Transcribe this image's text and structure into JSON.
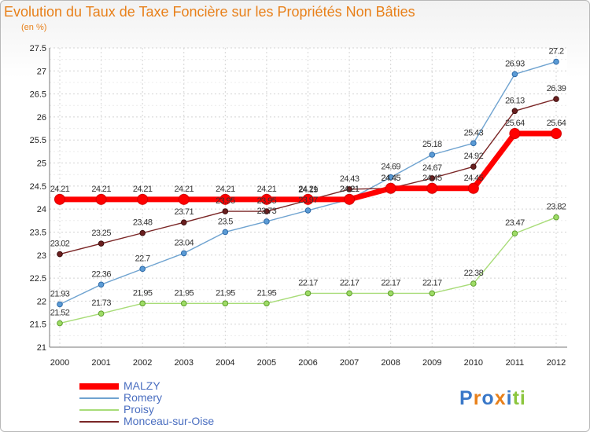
{
  "chart_data": {
    "type": "line",
    "title": "Evolution du Taux de Taxe Foncière sur les Propriétés Non Bâties",
    "unit_label": "(en %)",
    "xlabel": "",
    "ylabel": "",
    "x": [
      "2000",
      "2001",
      "2002",
      "2003",
      "2004",
      "2005",
      "2006",
      "2007",
      "2008",
      "2009",
      "2010",
      "2011",
      "2012"
    ],
    "ylim": [
      21,
      27.5
    ],
    "yticks": [
      "21",
      "21.5",
      "22",
      "22.5",
      "23",
      "23.5",
      "24",
      "24.5",
      "25",
      "25.5",
      "26",
      "26.5",
      "27",
      "27.5"
    ],
    "grid": true,
    "legend_position": "bottom-left",
    "series": [
      {
        "name": "MALZY",
        "color": "#ff0000",
        "values": [
          24.21,
          24.21,
          24.21,
          24.21,
          24.21,
          24.21,
          24.21,
          24.21,
          24.45,
          24.45,
          24.45,
          25.64,
          25.64
        ],
        "labels": [
          "24.21",
          "24.21",
          "24.21",
          "24.21",
          "24.21",
          "24.21",
          "24.21",
          "24.21",
          "24.45",
          "24.45",
          "24.45",
          "25.64",
          "25.64"
        ]
      },
      {
        "name": "Romery",
        "color": "#6fa3d0",
        "values": [
          21.93,
          22.36,
          22.7,
          23.04,
          23.5,
          23.73,
          23.97,
          24.21,
          24.69,
          25.18,
          25.43,
          26.93,
          27.2
        ],
        "labels": [
          "21.93",
          "22.36",
          "22.7",
          "23.04",
          "23.5",
          "23.73",
          "23.97",
          "24.21",
          "24.69",
          "25.18",
          "25.43",
          "26.93",
          "27.2"
        ]
      },
      {
        "name": "Proisy",
        "color": "#a8dc78",
        "values": [
          21.52,
          21.73,
          21.95,
          21.95,
          21.95,
          21.95,
          22.17,
          22.17,
          22.17,
          22.17,
          22.38,
          23.47,
          23.82
        ],
        "labels": [
          "21.52",
          "21.73",
          "21.95",
          "21.95",
          "21.95",
          "21.95",
          "22.17",
          "22.17",
          "22.17",
          "22.17",
          "22.38",
          "23.47",
          "23.82"
        ]
      },
      {
        "name": "Monceau-sur-Oise",
        "color": "#7a2626",
        "values": [
          23.02,
          23.25,
          23.48,
          23.71,
          23.95,
          23.95,
          24.19,
          24.43,
          24.45,
          24.67,
          24.92,
          26.13,
          26.39
        ],
        "labels": [
          "23.02",
          "23.25",
          "23.48",
          "23.71",
          "23.95",
          "23.95",
          "24.19",
          "24.43",
          "24.45",
          "24.67",
          "24.92",
          "26.13",
          "26.39"
        ]
      }
    ]
  },
  "logo": {
    "text": "Proxiti",
    "colors": [
      "#3a78c8",
      "#e8801a",
      "#3a78c8",
      "#e8801a",
      "#3a78c8",
      "#8cc63e",
      "#8cc63e"
    ]
  }
}
